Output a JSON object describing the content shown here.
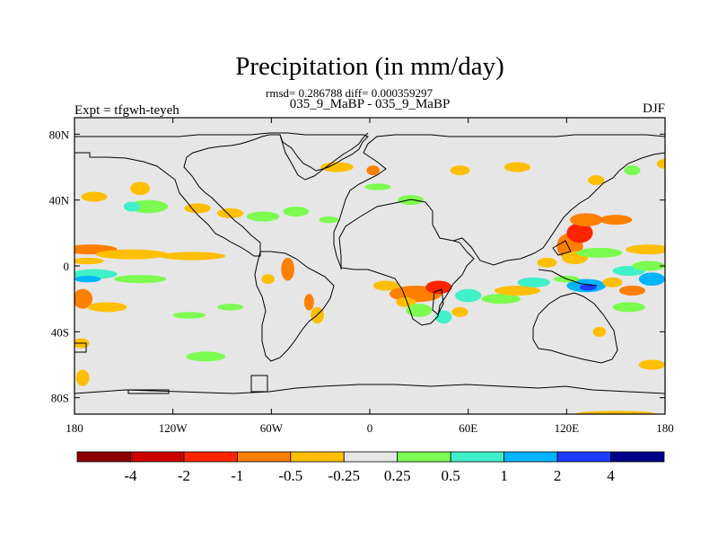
{
  "chart_data": {
    "type": "heatmap",
    "title": "Precipitation (in mm/day)",
    "stats_line": "rmsd= 0.286788 diff= 0.000359297",
    "subtitle": "035_9_MaBP - 035_9_MaBP",
    "left_label": "Expt = tfgwh-teyeh",
    "right_label": "DJF",
    "x_ticks": [
      "180",
      "120W",
      "60W",
      "0",
      "60E",
      "120E",
      "180"
    ],
    "x_tick_values": [
      -180,
      -120,
      -60,
      0,
      60,
      120,
      180
    ],
    "y_ticks": [
      "80N",
      "40N",
      "0",
      "40S",
      "80S"
    ],
    "y_tick_values": [
      80,
      40,
      0,
      -40,
      -80
    ],
    "xlim": [
      -180,
      180
    ],
    "ylim": [
      -90,
      90
    ],
    "background_color": "#e6e6e6",
    "colorbar": {
      "colors": [
        "#8b0000",
        "#cd0000",
        "#ff2400",
        "#ff7f00",
        "#ffbf00",
        "#e6e6e6",
        "#7cfc50",
        "#40f0c8",
        "#00b4ff",
        "#1e3cff",
        "#00008b"
      ],
      "labels": [
        "-4",
        "-2",
        "-1",
        "-0.5",
        "-0.25",
        "0.25",
        "0.5",
        "1",
        "2",
        "4"
      ]
    },
    "anomalies": [
      {
        "lon": -170,
        "lat": 10,
        "rx": 16,
        "ry": 3,
        "bin": 3
      },
      {
        "lon": -145,
        "lat": 7,
        "rx": 22,
        "ry": 3,
        "bin": 4
      },
      {
        "lon": -108,
        "lat": 6,
        "rx": 20,
        "ry": 2.5,
        "bin": 4
      },
      {
        "lon": -172,
        "lat": 3,
        "rx": 10,
        "ry": 2,
        "bin": 4
      },
      {
        "lon": -168,
        "lat": -5,
        "rx": 14,
        "ry": 3,
        "bin": 7
      },
      {
        "lon": -172,
        "lat": -8,
        "rx": 8,
        "ry": 2,
        "bin": 8
      },
      {
        "lon": -140,
        "lat": -8,
        "rx": 16,
        "ry": 2.5,
        "bin": 6
      },
      {
        "lon": -175,
        "lat": -20,
        "rx": 6,
        "ry": 6,
        "bin": 3
      },
      {
        "lon": -160,
        "lat": -25,
        "rx": 12,
        "ry": 3,
        "bin": 4
      },
      {
        "lon": -176,
        "lat": -47,
        "rx": 5,
        "ry": 3,
        "bin": 4
      },
      {
        "lon": -175,
        "lat": -68,
        "rx": 4,
        "ry": 5,
        "bin": 4
      },
      {
        "lon": -140,
        "lat": 47,
        "rx": 6,
        "ry": 4,
        "bin": 4
      },
      {
        "lon": -168,
        "lat": 42,
        "rx": 8,
        "ry": 3,
        "bin": 4
      },
      {
        "lon": -135,
        "lat": 36,
        "rx": 12,
        "ry": 4,
        "bin": 6
      },
      {
        "lon": -145,
        "lat": 36,
        "rx": 5,
        "ry": 3,
        "bin": 7
      },
      {
        "lon": -105,
        "lat": 35,
        "rx": 8,
        "ry": 3,
        "bin": 4
      },
      {
        "lon": -85,
        "lat": 32,
        "rx": 8,
        "ry": 3,
        "bin": 4
      },
      {
        "lon": -65,
        "lat": 30,
        "rx": 10,
        "ry": 3,
        "bin": 6
      },
      {
        "lon": -45,
        "lat": 33,
        "rx": 8,
        "ry": 3,
        "bin": 6
      },
      {
        "lon": -25,
        "lat": 28,
        "rx": 6,
        "ry": 2,
        "bin": 6
      },
      {
        "lon": -50,
        "lat": -2,
        "rx": 4,
        "ry": 7,
        "bin": 3
      },
      {
        "lon": -62,
        "lat": -8,
        "rx": 4,
        "ry": 3,
        "bin": 4
      },
      {
        "lon": -37,
        "lat": -22,
        "rx": 3,
        "ry": 5,
        "bin": 3
      },
      {
        "lon": -32,
        "lat": -30,
        "rx": 4,
        "ry": 5,
        "bin": 4
      },
      {
        "lon": -85,
        "lat": -25,
        "rx": 8,
        "ry": 2,
        "bin": 6
      },
      {
        "lon": -110,
        "lat": -30,
        "rx": 10,
        "ry": 2,
        "bin": 6
      },
      {
        "lon": -100,
        "lat": -55,
        "rx": 12,
        "ry": 3,
        "bin": 6
      },
      {
        "lon": -20,
        "lat": 60,
        "rx": 10,
        "ry": 3,
        "bin": 4
      },
      {
        "lon": 2,
        "lat": 58,
        "rx": 4,
        "ry": 3,
        "bin": 3
      },
      {
        "lon": 5,
        "lat": 48,
        "rx": 8,
        "ry": 2,
        "bin": 6
      },
      {
        "lon": 25,
        "lat": 40,
        "rx": 8,
        "ry": 3,
        "bin": 6
      },
      {
        "lon": 55,
        "lat": 58,
        "rx": 6,
        "ry": 3,
        "bin": 4
      },
      {
        "lon": 90,
        "lat": 60,
        "rx": 8,
        "ry": 3,
        "bin": 4
      },
      {
        "lon": 138,
        "lat": 52,
        "rx": 5,
        "ry": 3,
        "bin": 4
      },
      {
        "lon": 160,
        "lat": 58,
        "rx": 5,
        "ry": 3,
        "bin": 6
      },
      {
        "lon": 180,
        "lat": 62,
        "rx": 5,
        "ry": 3,
        "bin": 4
      },
      {
        "lon": 10,
        "lat": -12,
        "rx": 8,
        "ry": 3,
        "bin": 4
      },
      {
        "lon": 28,
        "lat": -17,
        "rx": 16,
        "ry": 5,
        "bin": 3
      },
      {
        "lon": 42,
        "lat": -13,
        "rx": 8,
        "ry": 4,
        "bin": 2
      },
      {
        "lon": 22,
        "lat": -22,
        "rx": 6,
        "ry": 3,
        "bin": 4
      },
      {
        "lon": 30,
        "lat": -27,
        "rx": 8,
        "ry": 4,
        "bin": 6
      },
      {
        "lon": 45,
        "lat": -31,
        "rx": 5,
        "ry": 4,
        "bin": 7
      },
      {
        "lon": 55,
        "lat": -28,
        "rx": 5,
        "ry": 3,
        "bin": 4
      },
      {
        "lon": 60,
        "lat": -18,
        "rx": 8,
        "ry": 4,
        "bin": 7
      },
      {
        "lon": 80,
        "lat": -20,
        "rx": 12,
        "ry": 3,
        "bin": 6
      },
      {
        "lon": 90,
        "lat": -15,
        "rx": 14,
        "ry": 3,
        "bin": 4
      },
      {
        "lon": 122,
        "lat": 12,
        "rx": 8,
        "ry": 8,
        "bin": 3
      },
      {
        "lon": 128,
        "lat": 20,
        "rx": 8,
        "ry": 6,
        "bin": 2
      },
      {
        "lon": 132,
        "lat": 28,
        "rx": 10,
        "ry": 4,
        "bin": 3
      },
      {
        "lon": 150,
        "lat": 28,
        "rx": 10,
        "ry": 3,
        "bin": 3
      },
      {
        "lon": 125,
        "lat": 5,
        "rx": 8,
        "ry": 4,
        "bin": 4
      },
      {
        "lon": 140,
        "lat": 8,
        "rx": 14,
        "ry": 3,
        "bin": 6
      },
      {
        "lon": 108,
        "lat": 2,
        "rx": 6,
        "ry": 3,
        "bin": 4
      },
      {
        "lon": 100,
        "lat": -10,
        "rx": 10,
        "ry": 3,
        "bin": 7
      },
      {
        "lon": 132,
        "lat": -12,
        "rx": 12,
        "ry": 4,
        "bin": 8
      },
      {
        "lon": 133,
        "lat": -13,
        "rx": 5,
        "ry": 2,
        "bin": 9
      },
      {
        "lon": 120,
        "lat": -8,
        "rx": 8,
        "ry": 2,
        "bin": 6
      },
      {
        "lon": 148,
        "lat": -10,
        "rx": 6,
        "ry": 3,
        "bin": 4
      },
      {
        "lon": 158,
        "lat": -3,
        "rx": 10,
        "ry": 3,
        "bin": 7
      },
      {
        "lon": 170,
        "lat": 0,
        "rx": 10,
        "ry": 3,
        "bin": 6
      },
      {
        "lon": 160,
        "lat": -15,
        "rx": 8,
        "ry": 3,
        "bin": 3
      },
      {
        "lon": 172,
        "lat": -8,
        "rx": 8,
        "ry": 4,
        "bin": 8
      },
      {
        "lon": 170,
        "lat": 10,
        "rx": 14,
        "ry": 3,
        "bin": 4
      },
      {
        "lon": 158,
        "lat": -25,
        "rx": 10,
        "ry": 3,
        "bin": 6
      },
      {
        "lon": 140,
        "lat": -40,
        "rx": 4,
        "ry": 3,
        "bin": 4
      },
      {
        "lon": 172,
        "lat": -60,
        "rx": 8,
        "ry": 3,
        "bin": 4
      },
      {
        "lon": 150,
        "lat": -90,
        "rx": 25,
        "ry": 2,
        "bin": 4
      }
    ]
  }
}
